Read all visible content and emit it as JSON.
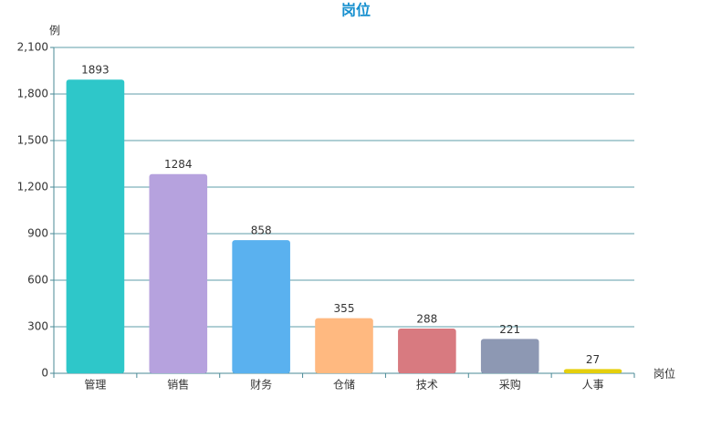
{
  "chart_data": {
    "type": "bar",
    "title": "岗位",
    "y_axis_label": "例",
    "x_axis_label": "岗位",
    "categories": [
      "管理",
      "销售",
      "财务",
      "仓储",
      "技术",
      "采购",
      "人事"
    ],
    "values": [
      1893,
      1284,
      858,
      355,
      288,
      221,
      27
    ],
    "colors": [
      "#2ec7c9",
      "#b6a2de",
      "#5ab1ef",
      "#ffb980",
      "#d87a80",
      "#8d98b3",
      "#e5cf0d"
    ],
    "ylim": [
      0,
      2100
    ],
    "yticks": [
      0,
      300,
      600,
      900,
      {
        "value": 1200,
        "label": "1,200"
      },
      {
        "value": 1500,
        "label": "1,500"
      },
      {
        "value": 1800,
        "label": "1,800"
      },
      {
        "value": 2100,
        "label": "2,100"
      }
    ],
    "grid": true
  }
}
